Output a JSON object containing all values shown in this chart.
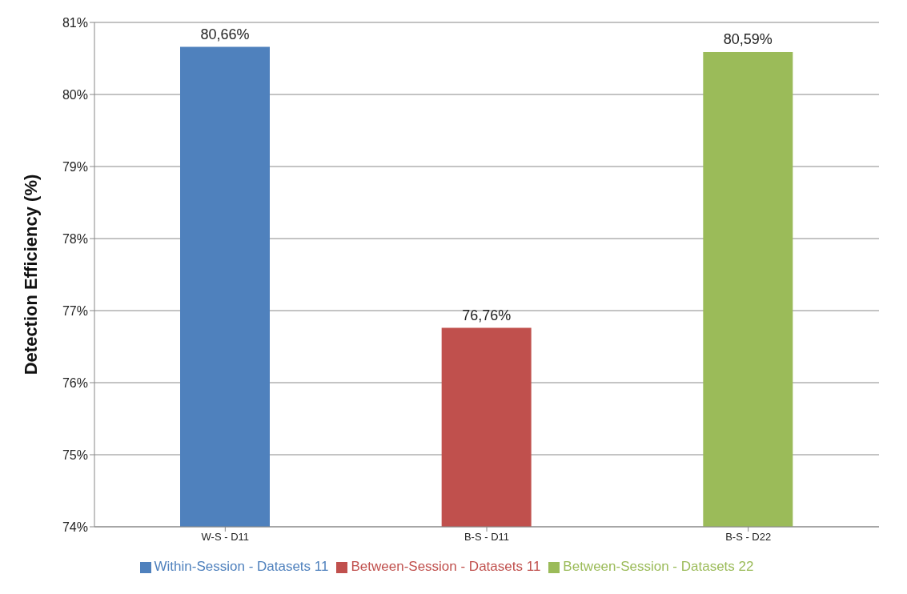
{
  "chart_data": {
    "type": "bar",
    "ylabel": "Detection Efficiency (%)",
    "categories": [
      "W-S - D11",
      "B-S - D11",
      "B-S - D22"
    ],
    "series": [
      {
        "name": "Within-Session - Datasets 11",
        "color": "#4f81bd",
        "values": [
          80.66,
          null,
          null
        ],
        "value_labels": [
          "80,66%",
          null,
          null
        ]
      },
      {
        "name": "Between-Session - Datasets 11",
        "color": "#c0504d",
        "values": [
          null,
          76.76,
          null
        ],
        "value_labels": [
          null,
          "76,76%",
          null
        ]
      },
      {
        "name": "Between-Session - Datasets 22",
        "color": "#9bbb59",
        "values": [
          null,
          null,
          80.59
        ],
        "value_labels": [
          null,
          null,
          "80,59%"
        ]
      }
    ],
    "stacked": true,
    "ylim": [
      74,
      81
    ],
    "yticks": [
      {
        "value": 74,
        "label": "74%"
      },
      {
        "value": 75,
        "label": "75%"
      },
      {
        "value": 76,
        "label": "76%"
      },
      {
        "value": 77,
        "label": "77%"
      },
      {
        "value": 78,
        "label": "78%"
      },
      {
        "value": 79,
        "label": "79%"
      },
      {
        "value": 80,
        "label": "80%"
      },
      {
        "value": 81,
        "label": "81%"
      }
    ],
    "grid": "y",
    "legend": "bottom"
  }
}
